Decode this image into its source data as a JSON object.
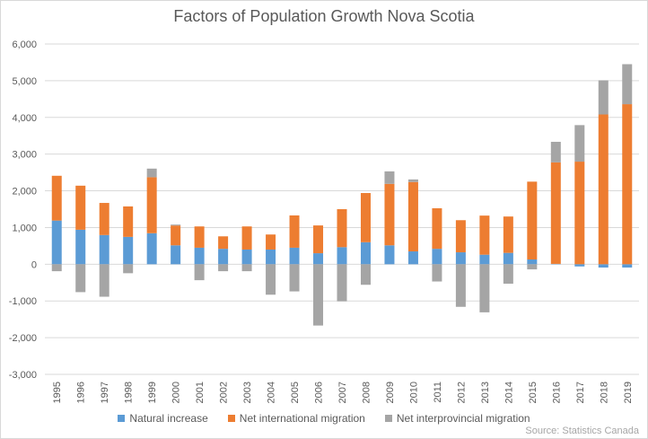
{
  "chart_data": {
    "type": "bar",
    "stacked": true,
    "title": "Factors of Population Growth Nova Scotia",
    "source": "Source: Statistics Canada",
    "ylim": [
      -3000,
      6000
    ],
    "yticks": [
      -3000,
      -2000,
      -1000,
      0,
      1000,
      2000,
      3000,
      4000,
      5000,
      6000
    ],
    "ytick_labels": [
      "-3,000",
      "-2,000",
      "-1,000",
      "0",
      "1,000",
      "2,000",
      "3,000",
      "4,000",
      "5,000",
      "6,000"
    ],
    "grid": true,
    "legend_position": "bottom",
    "categories": [
      "1995",
      "1996",
      "1997",
      "1998",
      "1999",
      "2000",
      "2001",
      "2002",
      "2003",
      "2004",
      "2005",
      "2006",
      "2007",
      "2008",
      "2009",
      "2010",
      "2011",
      "2012",
      "2013",
      "2014",
      "2015",
      "2016",
      "2017",
      "2018",
      "2019"
    ],
    "series": [
      {
        "name": "Natural increase",
        "color": "#5b9bd5",
        "values": [
          1190,
          940,
          795,
          745,
          845,
          515,
          450,
          420,
          400,
          400,
          450,
          300,
          465,
          600,
          515,
          350,
          420,
          325,
          260,
          310,
          130,
          10,
          -60,
          -90,
          -90
        ]
      },
      {
        "name": "Net international migration",
        "color": "#ed7d31",
        "values": [
          1220,
          1200,
          875,
          830,
          1525,
          540,
          580,
          340,
          630,
          410,
          880,
          757,
          1035,
          1340,
          1675,
          1890,
          1105,
          875,
          1065,
          990,
          2120,
          2765,
          2795,
          4080,
          4360
        ]
      },
      {
        "name": "Net interprovincial migration",
        "color": "#a5a5a5",
        "values": [
          -190,
          -760,
          -885,
          -245,
          235,
          25,
          -435,
          -190,
          -190,
          -830,
          -740,
          -1670,
          -1010,
          -560,
          340,
          70,
          -470,
          -1160,
          -1310,
          -530,
          -140,
          560,
          995,
          930,
          1090
        ]
      }
    ]
  }
}
